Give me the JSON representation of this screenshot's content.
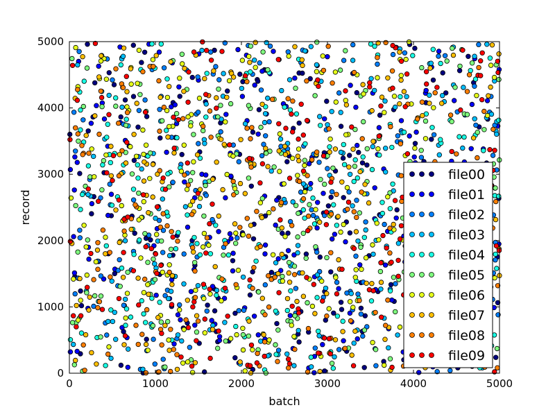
{
  "chart_data": {
    "type": "scatter",
    "title": "",
    "xlabel": "batch",
    "ylabel": "record",
    "xlim": [
      0,
      5000
    ],
    "ylim": [
      0,
      5000
    ],
    "xticks": [
      0,
      1000,
      2000,
      3000,
      4000,
      5000
    ],
    "yticks": [
      0,
      1000,
      2000,
      3000,
      4000,
      5000
    ],
    "grid": false,
    "legend_position": "right",
    "marker": "circle",
    "points_per_series_approx": 200,
    "series": [
      {
        "name": "file00",
        "color": "#00007f",
        "points": [
          [
            210,
            4960
          ],
          [
            520,
            4350
          ],
          [
            900,
            3870
          ],
          [
            1430,
            4460
          ],
          [
            1880,
            2960
          ],
          [
            2350,
            1520
          ],
          [
            2780,
            620
          ],
          [
            3220,
            2280
          ],
          [
            3610,
            3890
          ],
          [
            4230,
            4420
          ],
          [
            4720,
            2980
          ],
          [
            130,
            1240
          ],
          [
            760,
            2110
          ],
          [
            1690,
            940
          ],
          [
            2990,
            4100
          ],
          [
            3390,
            980
          ],
          [
            4080,
            1760
          ],
          [
            4610,
            320
          ]
        ]
      },
      {
        "name": "file01",
        "color": "#0000ff",
        "points": [
          [
            340,
            4630
          ],
          [
            650,
            3510
          ],
          [
            1020,
            2180
          ],
          [
            1540,
            3000
          ],
          [
            1960,
            4880
          ],
          [
            2410,
            2610
          ],
          [
            2870,
            1870
          ],
          [
            3330,
            4010
          ],
          [
            3800,
            2340
          ],
          [
            4350,
            650
          ],
          [
            4860,
            4110
          ],
          [
            90,
            330
          ],
          [
            1190,
            1410
          ],
          [
            2150,
            860
          ],
          [
            2620,
            4450
          ],
          [
            3560,
            1260
          ],
          [
            4010,
            3260
          ],
          [
            4520,
            2460
          ]
        ]
      },
      {
        "name": "file02",
        "color": "#007fff",
        "points": [
          [
            160,
            3820
          ],
          [
            470,
            2850
          ],
          [
            880,
            4120
          ],
          [
            1280,
            1030
          ],
          [
            1760,
            3640
          ],
          [
            2230,
            4270
          ],
          [
            2690,
            2730
          ],
          [
            3110,
            1370
          ],
          [
            3580,
            4660
          ],
          [
            4040,
            2920
          ],
          [
            4510,
            3940
          ],
          [
            4930,
            1510
          ],
          [
            1090,
            210
          ],
          [
            1950,
            2040
          ],
          [
            3410,
            560
          ],
          [
            2460,
            3420
          ],
          [
            720,
            1560
          ],
          [
            4290,
            4780
          ]
        ]
      },
      {
        "name": "file03",
        "color": "#00bfff",
        "points": [
          [
            280,
            3270
          ],
          [
            610,
            4740
          ],
          [
            990,
            1650
          ],
          [
            1350,
            2510
          ],
          [
            1820,
            1240
          ],
          [
            2270,
            3780
          ],
          [
            2740,
            4860
          ],
          [
            3180,
            3320
          ],
          [
            3660,
            830
          ],
          [
            4120,
            1490
          ],
          [
            4580,
            4310
          ],
          [
            4960,
            3650
          ],
          [
            450,
            780
          ],
          [
            1590,
            4060
          ],
          [
            2530,
            290
          ],
          [
            3920,
            4170
          ],
          [
            3040,
            2420
          ],
          [
            840,
            3080
          ]
        ]
      },
      {
        "name": "file04",
        "color": "#19ffe5",
        "points": [
          [
            120,
            4240
          ],
          [
            430,
            1920
          ],
          [
            830,
            4580
          ],
          [
            1240,
            3390
          ],
          [
            1700,
            2230
          ],
          [
            2170,
            1690
          ],
          [
            2640,
            3910
          ],
          [
            3070,
            2540
          ],
          [
            3520,
            3070
          ],
          [
            3990,
            4790
          ],
          [
            4450,
            1850
          ],
          [
            4890,
            580
          ],
          [
            1050,
            1070
          ],
          [
            2060,
            4520
          ],
          [
            2880,
            1140
          ],
          [
            3740,
            2130
          ],
          [
            560,
            2660
          ],
          [
            4320,
            3470
          ]
        ]
      },
      {
        "name": "file05",
        "color": "#7fff7f",
        "points": [
          [
            240,
            2960
          ],
          [
            590,
            1310
          ],
          [
            940,
            3320
          ],
          [
            1310,
            4810
          ],
          [
            1790,
            1780
          ],
          [
            2250,
            920
          ],
          [
            2720,
            2110
          ],
          [
            3150,
            4570
          ],
          [
            3630,
            1670
          ],
          [
            4090,
            3360
          ],
          [
            4540,
            4630
          ],
          [
            4900,
            2210
          ],
          [
            380,
            4020
          ],
          [
            1480,
            620
          ],
          [
            2380,
            3110
          ],
          [
            3460,
            2890
          ],
          [
            1160,
            2810
          ],
          [
            4180,
            870
          ]
        ]
      },
      {
        "name": "file06",
        "color": "#e5ff19",
        "points": [
          [
            310,
            1680
          ],
          [
            690,
            3960
          ],
          [
            1060,
            870
          ],
          [
            1410,
            3730
          ],
          [
            1860,
            4410
          ],
          [
            2320,
            2420
          ],
          [
            2790,
            1420
          ],
          [
            3240,
            3600
          ],
          [
            3700,
            2660
          ],
          [
            4160,
            560
          ],
          [
            4620,
            3100
          ],
          [
            4940,
            4460
          ],
          [
            170,
            2230
          ],
          [
            1620,
            1930
          ],
          [
            2550,
            4780
          ],
          [
            3960,
            1960
          ],
          [
            2020,
            350
          ],
          [
            810,
            4870
          ]
        ]
      },
      {
        "name": "file07",
        "color": "#ffbf00",
        "points": [
          [
            190,
            580
          ],
          [
            540,
            2460
          ],
          [
            920,
            1190
          ],
          [
            1330,
            4250
          ],
          [
            1800,
            3450
          ],
          [
            2260,
            580
          ],
          [
            2710,
            4640
          ],
          [
            3130,
            1710
          ],
          [
            3590,
            4980
          ],
          [
            4050,
            3850
          ],
          [
            4500,
            1180
          ],
          [
            4870,
            2640
          ],
          [
            620,
            4310
          ],
          [
            1520,
            2770
          ],
          [
            2470,
            2190
          ],
          [
            3380,
            3040
          ],
          [
            1010,
            4790
          ],
          [
            4280,
            2570
          ]
        ]
      },
      {
        "name": "file08",
        "color": "#ff7f00",
        "points": [
          [
            350,
            1080
          ],
          [
            720,
            2330
          ],
          [
            1100,
            4010
          ],
          [
            1460,
            1540
          ],
          [
            1910,
            2690
          ],
          [
            2360,
            4130
          ],
          [
            2820,
            3220
          ],
          [
            3270,
            790
          ],
          [
            3730,
            4280
          ],
          [
            4190,
            2090
          ],
          [
            4650,
            4500
          ],
          [
            4980,
            1320
          ],
          [
            70,
            3700
          ],
          [
            1250,
            280
          ],
          [
            2130,
            1280
          ],
          [
            3010,
            4930
          ],
          [
            3850,
            3460
          ],
          [
            540,
            4590
          ]
        ]
      },
      {
        "name": "file09",
        "color": "#ff0000",
        "points": [
          [
            80,
            700
          ],
          [
            460,
            3900
          ],
          [
            860,
            2690
          ],
          [
            1210,
            3860
          ],
          [
            1650,
            4720
          ],
          [
            2120,
            3230
          ],
          [
            2590,
            1010
          ],
          [
            3040,
            2880
          ],
          [
            3490,
            4380
          ],
          [
            3950,
            3140
          ],
          [
            4420,
            2280
          ],
          [
            4800,
            4830
          ],
          [
            630,
            1820
          ],
          [
            1560,
            1340
          ],
          [
            2430,
            4730
          ],
          [
            3310,
            1880
          ],
          [
            4090,
            1040
          ],
          [
            2910,
            300
          ]
        ]
      }
    ]
  }
}
